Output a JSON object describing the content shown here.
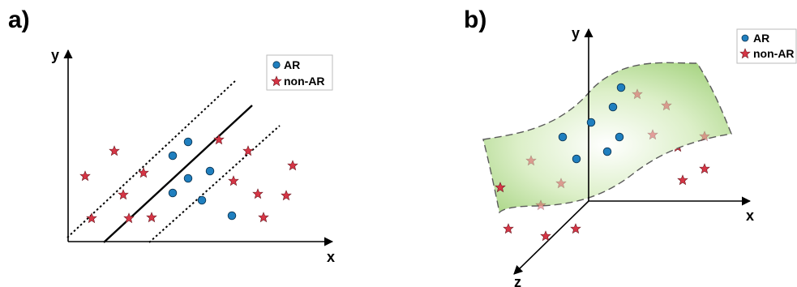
{
  "colors": {
    "ar": "#1f7fbf",
    "non_ar": "#d63545",
    "surface": "#b7dd95",
    "axis": "#000000"
  },
  "panel_a": {
    "label": "a)",
    "x_label": "x",
    "y_label": "y",
    "legend": {
      "ar": "AR",
      "non_ar": "non-AR"
    }
  },
  "panel_b": {
    "label": "b)",
    "x_label": "x",
    "y_label": "y",
    "z_label": "z",
    "legend": {
      "ar": "AR",
      "non_ar": "non-AR"
    }
  }
}
